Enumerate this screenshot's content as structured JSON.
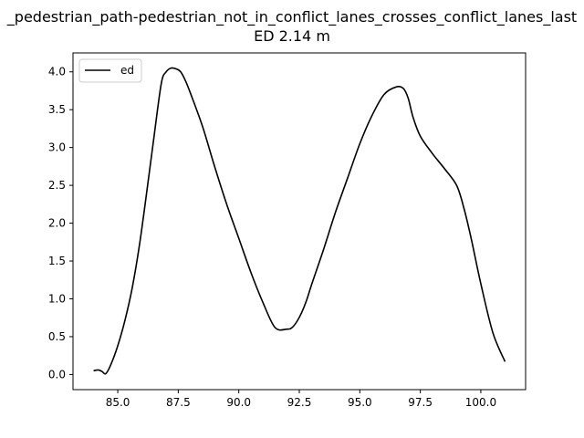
{
  "chart_data": {
    "type": "line",
    "title_line1": "_pedestrian_path-pedestrian_not_in_conflict_lanes_crosses_conflict_lanes_last",
    "title_line2": "ED 2.14 m",
    "xlabel": "",
    "ylabel": "",
    "xlim": [
      83.15,
      101.85
    ],
    "ylim": [
      -0.2,
      4.25
    ],
    "x_ticks": [
      85.0,
      87.5,
      90.0,
      92.5,
      95.0,
      97.5,
      100.0
    ],
    "x_tick_labels": [
      "85.0",
      "87.5",
      "90.0",
      "92.5",
      "95.0",
      "97.5",
      "100.0"
    ],
    "y_ticks": [
      0.0,
      0.5,
      1.0,
      1.5,
      2.0,
      2.5,
      3.0,
      3.5,
      4.0
    ],
    "y_tick_labels": [
      "0.0",
      "0.5",
      "1.0",
      "1.5",
      "2.0",
      "2.5",
      "3.0",
      "3.5",
      "4.0"
    ],
    "legend_position": "upper-left",
    "series": [
      {
        "name": "ed",
        "color": "#000000",
        "x": [
          84.0,
          84.2,
          84.35,
          84.5,
          84.7,
          85.0,
          85.3,
          85.6,
          85.9,
          86.2,
          86.5,
          86.8,
          87.0,
          87.2,
          87.4,
          87.6,
          87.8,
          88.0,
          88.5,
          89.0,
          89.5,
          90.0,
          90.5,
          91.0,
          91.5,
          92.0,
          92.2,
          92.4,
          92.6,
          92.8,
          93.0,
          93.5,
          94.0,
          94.5,
          95.0,
          95.5,
          96.0,
          96.5,
          96.8,
          97.0,
          97.2,
          97.5,
          98.0,
          98.5,
          99.0,
          99.3,
          99.6,
          100.0,
          100.5,
          101.0
        ],
        "y": [
          0.05,
          0.06,
          0.04,
          0.01,
          0.12,
          0.38,
          0.72,
          1.15,
          1.72,
          2.42,
          3.15,
          3.85,
          4.0,
          4.05,
          4.04,
          4.0,
          3.88,
          3.72,
          3.28,
          2.75,
          2.25,
          1.8,
          1.35,
          0.95,
          0.62,
          0.6,
          0.62,
          0.7,
          0.82,
          0.98,
          1.18,
          1.65,
          2.15,
          2.6,
          3.05,
          3.42,
          3.7,
          3.8,
          3.78,
          3.65,
          3.4,
          3.15,
          2.92,
          2.72,
          2.5,
          2.2,
          1.8,
          1.2,
          0.55,
          0.17
        ]
      }
    ]
  }
}
